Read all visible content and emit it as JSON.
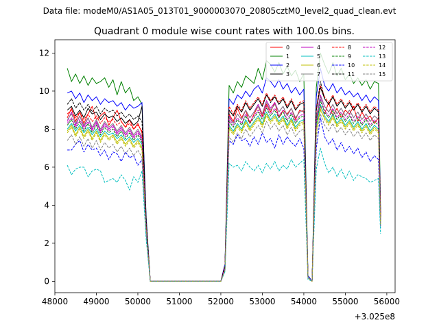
{
  "figure": {
    "suptitle": "Data file: modeM0/AS1A05_013T01_9000003070_20805cztM0_level2_quad_clean.evt"
  },
  "chart_data": {
    "type": "line",
    "title": "Quadrant 0 module wise count rates with 100.0s bins.",
    "xlabel": "",
    "ylabel": "",
    "x_offset_label": "+3.025e8",
    "xlim": [
      48000,
      56200
    ],
    "ylim": [
      -0.6,
      12.7
    ],
    "xticks": [
      48000,
      49000,
      50000,
      51000,
      52000,
      53000,
      54000,
      55000,
      56000
    ],
    "yticks": [
      0,
      2,
      4,
      6,
      8,
      10,
      12
    ],
    "xtick_labels": [
      "48000",
      "49000",
      "50000",
      "51000",
      "52000",
      "53000",
      "54000",
      "55000",
      "56000"
    ],
    "ytick_labels": [
      "0",
      "2",
      "4",
      "6",
      "8",
      "10",
      "12"
    ],
    "grid": false,
    "legend_position": "top-right",
    "x": [
      48300,
      48400,
      48500,
      48600,
      48700,
      48800,
      48900,
      49000,
      49100,
      49200,
      49300,
      49400,
      49500,
      49600,
      49700,
      49800,
      49900,
      50000,
      50100,
      50200,
      50300,
      50400,
      50500,
      51000,
      51500,
      52000,
      52100,
      52200,
      52300,
      52400,
      52500,
      52600,
      52700,
      52800,
      52900,
      53000,
      53100,
      53200,
      53300,
      53400,
      53500,
      53600,
      53700,
      53800,
      53900,
      54000,
      54100,
      54200,
      54300,
      54400,
      54500,
      54600,
      54700,
      54800,
      54900,
      55000,
      55100,
      55200,
      55300,
      55400,
      55500,
      55600,
      55700,
      55800,
      55850
    ],
    "series": [
      {
        "name": "0",
        "color": "#ff0000",
        "dash": "solid",
        "values": [
          8.6,
          9.1,
          8.4,
          8.9,
          8.3,
          8.8,
          9.2,
          8.5,
          8.7,
          8.9,
          8.2,
          8.6,
          9.0,
          8.4,
          8.1,
          8.5,
          8.0,
          8.3,
          7.8,
          3.0,
          0.0,
          0.0,
          0.0,
          0.0,
          0.0,
          0.0,
          0.8,
          8.8,
          8.4,
          9.1,
          8.6,
          9.0,
          8.3,
          8.8,
          9.2,
          8.7,
          9.3,
          8.9,
          9.4,
          8.6,
          9.0,
          8.8,
          9.1,
          8.5,
          9.0,
          8.9,
          0.2,
          0.0,
          8.5,
          9.2,
          8.8,
          9.4,
          8.7,
          9.1,
          8.6,
          9.0,
          8.8,
          9.2,
          8.4,
          8.9,
          8.5,
          8.7,
          8.3,
          8.6,
          3.5
        ]
      },
      {
        "name": "1",
        "color": "#008000",
        "dash": "solid",
        "values": [
          11.2,
          10.5,
          10.9,
          10.4,
          10.8,
          10.3,
          10.7,
          10.4,
          10.5,
          10.7,
          10.2,
          10.6,
          9.8,
          10.5,
          9.9,
          10.2,
          9.5,
          9.7,
          9.3,
          3.4,
          0.0,
          0.0,
          0.0,
          0.0,
          0.0,
          0.0,
          0.9,
          10.3,
          9.9,
          10.5,
          10.2,
          10.8,
          10.6,
          10.4,
          11.2,
          10.6,
          11.6,
          11.4,
          11.0,
          11.5,
          10.9,
          11.3,
          10.8,
          11.1,
          10.5,
          10.9,
          0.3,
          0.0,
          10.2,
          12.0,
          11.4,
          10.9,
          11.5,
          10.8,
          11.2,
          10.6,
          10.9,
          10.4,
          10.7,
          10.3,
          10.6,
          10.1,
          10.5,
          10.4,
          3.8
        ]
      },
      {
        "name": "2",
        "color": "#0000ff",
        "dash": "solid",
        "values": [
          9.9,
          10.0,
          9.6,
          9.9,
          9.4,
          9.8,
          9.5,
          9.7,
          9.3,
          9.6,
          9.4,
          9.5,
          9.2,
          9.4,
          9.0,
          9.3,
          9.1,
          9.2,
          9.4,
          3.3,
          0.0,
          0.0,
          0.0,
          0.0,
          0.0,
          0.0,
          0.9,
          9.6,
          9.3,
          9.8,
          9.6,
          10.0,
          9.7,
          10.1,
          10.3,
          9.9,
          10.7,
          10.5,
          10.2,
          10.6,
          10.1,
          10.4,
          9.9,
          10.2,
          9.8,
          10.1,
          0.3,
          0.0,
          9.7,
          11.2,
          10.3,
          10.0,
          10.4,
          9.9,
          10.2,
          9.8,
          10.0,
          9.7,
          9.9,
          9.5,
          9.8,
          9.4,
          9.7,
          9.5,
          3.6
        ]
      },
      {
        "name": "3",
        "color": "#000000",
        "dash": "solid",
        "values": [
          9.0,
          9.2,
          8.7,
          9.0,
          8.6,
          9.1,
          8.8,
          8.9,
          8.5,
          8.8,
          8.6,
          8.7,
          8.4,
          8.6,
          8.3,
          8.5,
          8.2,
          8.4,
          9.2,
          3.1,
          0.0,
          0.0,
          0.0,
          0.0,
          0.0,
          0.0,
          0.8,
          9.0,
          8.7,
          9.2,
          8.9,
          9.4,
          9.0,
          9.3,
          9.6,
          9.2,
          9.8,
          9.5,
          9.7,
          9.3,
          9.6,
          9.1,
          9.5,
          9.0,
          9.3,
          9.4,
          0.2,
          0.0,
          9.0,
          10.2,
          9.6,
          9.3,
          9.7,
          9.2,
          9.5,
          9.1,
          9.4,
          9.0,
          9.3,
          8.9,
          9.2,
          8.8,
          9.1,
          8.9,
          3.4
        ]
      },
      {
        "name": "4",
        "color": "#bf00bf",
        "dash": "solid",
        "values": [
          8.4,
          8.9,
          8.2,
          8.7,
          8.1,
          8.6,
          8.0,
          8.4,
          7.9,
          8.3,
          8.0,
          8.2,
          7.8,
          8.1,
          7.7,
          8.0,
          7.6,
          7.9,
          7.5,
          2.9,
          0.0,
          0.0,
          0.0,
          0.0,
          0.0,
          0.0,
          0.7,
          8.7,
          8.3,
          8.8,
          8.5,
          9.0,
          8.6,
          8.9,
          9.3,
          8.8,
          9.5,
          9.1,
          9.4,
          8.9,
          9.2,
          8.7,
          9.1,
          8.6,
          8.9,
          9.0,
          0.2,
          0.0,
          8.6,
          9.8,
          9.2,
          8.9,
          9.3,
          8.8,
          9.1,
          8.7,
          9.0,
          8.6,
          8.9,
          8.5,
          8.8,
          8.4,
          8.7,
          8.5,
          3.2
        ]
      },
      {
        "name": "5",
        "color": "#00bfbf",
        "dash": "solid",
        "values": [
          8.0,
          8.3,
          7.9,
          8.2,
          7.8,
          8.1,
          7.7,
          8.0,
          7.6,
          7.9,
          7.7,
          7.8,
          7.5,
          7.7,
          7.4,
          7.6,
          7.3,
          7.5,
          7.2,
          2.8,
          0.0,
          0.0,
          0.0,
          0.0,
          0.0,
          0.0,
          0.7,
          8.2,
          7.9,
          8.3,
          8.0,
          8.5,
          8.1,
          8.4,
          8.7,
          8.3,
          8.9,
          8.5,
          8.8,
          8.4,
          8.7,
          8.2,
          8.6,
          8.1,
          8.4,
          8.5,
          0.2,
          0.0,
          8.1,
          9.3,
          8.7,
          8.4,
          8.8,
          8.3,
          8.6,
          8.2,
          8.5,
          8.1,
          8.4,
          8.0,
          8.3,
          7.9,
          8.2,
          8.0,
          3.1
        ]
      },
      {
        "name": "6",
        "color": "#bfbf00",
        "dash": "solid",
        "values": [
          7.9,
          8.2,
          7.7,
          8.1,
          7.6,
          8.0,
          7.5,
          7.9,
          7.4,
          7.8,
          7.5,
          7.7,
          7.3,
          7.6,
          7.2,
          7.5,
          7.1,
          7.4,
          7.0,
          2.7,
          0.0,
          0.0,
          0.0,
          0.0,
          0.0,
          0.0,
          0.6,
          8.1,
          7.8,
          8.2,
          7.9,
          8.4,
          8.0,
          8.3,
          8.6,
          8.2,
          8.8,
          8.4,
          8.7,
          8.3,
          8.6,
          8.1,
          8.5,
          8.0,
          8.3,
          8.4,
          0.2,
          0.0,
          8.0,
          9.0,
          8.6,
          8.3,
          8.7,
          8.2,
          8.5,
          8.1,
          8.4,
          8.0,
          8.3,
          7.9,
          8.2,
          7.8,
          8.1,
          7.9,
          3.0
        ]
      },
      {
        "name": "7",
        "color": "#808080",
        "dash": "solid",
        "values": [
          8.5,
          8.8,
          8.3,
          8.7,
          8.2,
          8.6,
          8.1,
          8.5,
          8.0,
          8.4,
          8.1,
          8.3,
          7.9,
          8.2,
          7.8,
          8.1,
          7.7,
          8.0,
          7.6,
          2.9,
          0.0,
          0.0,
          0.0,
          0.0,
          0.0,
          0.0,
          0.7,
          8.6,
          8.3,
          8.8,
          8.5,
          9.0,
          8.6,
          8.9,
          9.2,
          8.8,
          9.4,
          9.0,
          9.3,
          8.9,
          9.2,
          8.7,
          9.1,
          8.6,
          8.9,
          9.0,
          0.2,
          0.0,
          8.6,
          9.7,
          9.2,
          8.9,
          9.3,
          8.8,
          9.1,
          8.7,
          9.0,
          8.6,
          8.9,
          8.5,
          8.8,
          8.4,
          8.7,
          8.5,
          3.2
        ]
      },
      {
        "name": "8",
        "color": "#ff0000",
        "dash": "dashed",
        "values": [
          8.8,
          9.0,
          8.6,
          8.9,
          8.5,
          8.8,
          8.4,
          8.7,
          8.3,
          8.6,
          8.4,
          8.5,
          8.2,
          8.4,
          8.1,
          8.3,
          8.0,
          8.2,
          7.9,
          3.0,
          0.0,
          0.0,
          0.0,
          0.0,
          0.0,
          0.0,
          0.8,
          9.2,
          8.8,
          9.3,
          9.0,
          9.5,
          9.1,
          9.4,
          9.7,
          9.3,
          9.9,
          9.5,
          9.8,
          9.4,
          9.7,
          9.2,
          9.6,
          9.1,
          9.4,
          9.5,
          0.2,
          0.0,
          9.1,
          10.3,
          9.7,
          9.4,
          9.8,
          9.3,
          9.6,
          9.2,
          9.5,
          9.1,
          9.4,
          9.0,
          9.3,
          8.9,
          9.2,
          9.0,
          3.4
        ]
      },
      {
        "name": "9",
        "color": "#008000",
        "dash": "dashed",
        "values": [
          8.2,
          8.5,
          8.0,
          8.4,
          7.9,
          8.3,
          7.8,
          8.2,
          7.7,
          8.1,
          7.8,
          8.0,
          7.6,
          7.9,
          7.5,
          7.8,
          7.4,
          7.7,
          7.3,
          2.8,
          0.0,
          0.0,
          0.0,
          0.0,
          0.0,
          0.0,
          0.7,
          8.4,
          8.1,
          8.5,
          8.2,
          8.7,
          8.3,
          8.6,
          8.9,
          8.5,
          9.1,
          8.7,
          9.0,
          8.6,
          8.9,
          8.4,
          8.8,
          8.3,
          8.6,
          8.7,
          0.2,
          0.0,
          8.3,
          9.5,
          8.9,
          8.6,
          9.0,
          8.5,
          8.8,
          8.4,
          8.7,
          8.3,
          8.6,
          8.2,
          8.5,
          8.1,
          8.4,
          8.2,
          3.2
        ]
      },
      {
        "name": "10",
        "color": "#0000ff",
        "dash": "dashed",
        "values": [
          6.9,
          6.9,
          7.2,
          7.4,
          6.8,
          7.2,
          6.9,
          7.0,
          6.6,
          6.9,
          6.4,
          6.8,
          6.7,
          6.3,
          6.8,
          6.5,
          6.6,
          6.1,
          6.4,
          2.5,
          0.0,
          0.0,
          0.0,
          0.0,
          0.0,
          0.0,
          0.6,
          7.4,
          7.2,
          7.7,
          7.4,
          7.5,
          7.1,
          7.6,
          7.2,
          7.8,
          7.3,
          7.5,
          7.0,
          7.7,
          7.2,
          7.6,
          7.3,
          7.1,
          7.5,
          7.0,
          0.2,
          0.0,
          7.0,
          8.6,
          7.6,
          7.2,
          7.5,
          6.9,
          7.3,
          6.8,
          7.1,
          6.7,
          7.0,
          6.5,
          6.8,
          6.3,
          6.6,
          6.4,
          2.8
        ]
      },
      {
        "name": "11",
        "color": "#000000",
        "dash": "dashed",
        "values": [
          9.3,
          9.6,
          9.1,
          9.4,
          9.0,
          9.3,
          8.9,
          9.2,
          8.8,
          9.1,
          8.9,
          9.0,
          8.7,
          8.9,
          8.6,
          8.8,
          8.5,
          8.7,
          8.4,
          3.2,
          0.0,
          0.0,
          0.0,
          0.0,
          0.0,
          0.0,
          0.8,
          9.0,
          8.7,
          9.2,
          8.9,
          9.4,
          9.0,
          9.3,
          9.6,
          9.2,
          9.8,
          9.4,
          9.7,
          9.3,
          9.6,
          9.1,
          9.5,
          9.0,
          9.3,
          9.4,
          0.2,
          0.0,
          9.0,
          10.5,
          9.6,
          9.3,
          9.7,
          9.2,
          9.5,
          9.1,
          9.4,
          9.0,
          9.3,
          8.9,
          9.2,
          8.8,
          9.1,
          8.9,
          3.4
        ]
      },
      {
        "name": "12",
        "color": "#bf00bf",
        "dash": "dashed",
        "values": [
          8.3,
          8.6,
          8.1,
          8.5,
          8.0,
          8.4,
          7.9,
          8.3,
          7.8,
          8.2,
          7.9,
          8.1,
          7.7,
          8.0,
          7.6,
          7.9,
          7.5,
          7.8,
          7.4,
          2.8,
          0.0,
          0.0,
          0.0,
          0.0,
          0.0,
          0.0,
          0.7,
          8.5,
          8.2,
          8.6,
          8.3,
          8.8,
          8.4,
          8.7,
          9.0,
          8.6,
          9.2,
          8.8,
          9.1,
          8.7,
          9.0,
          8.5,
          8.9,
          8.4,
          8.7,
          8.8,
          0.2,
          0.0,
          8.4,
          9.6,
          9.0,
          8.7,
          9.1,
          8.6,
          8.9,
          8.5,
          8.8,
          8.4,
          8.7,
          8.3,
          8.6,
          8.2,
          8.5,
          8.3,
          3.2
        ]
      },
      {
        "name": "13",
        "color": "#00bfbf",
        "dash": "dashed",
        "values": [
          6.1,
          5.6,
          5.9,
          6.0,
          6.0,
          5.5,
          5.8,
          5.9,
          5.8,
          5.2,
          5.3,
          5.4,
          5.2,
          5.6,
          5.3,
          4.8,
          5.5,
          5.2,
          5.8,
          2.2,
          0.0,
          0.0,
          0.0,
          0.0,
          0.0,
          0.0,
          0.5,
          6.2,
          6.0,
          6.1,
          5.8,
          6.3,
          6.0,
          5.8,
          6.1,
          5.7,
          6.2,
          5.9,
          6.3,
          5.8,
          6.1,
          5.9,
          6.4,
          6.0,
          6.2,
          6.4,
          0.1,
          0.0,
          5.9,
          7.0,
          6.2,
          5.7,
          6.0,
          5.5,
          5.9,
          5.4,
          5.8,
          5.3,
          5.6,
          5.5,
          5.4,
          5.2,
          5.3,
          5.4,
          2.5
        ]
      },
      {
        "name": "14",
        "color": "#bfbf00",
        "dash": "dashed",
        "values": [
          7.8,
          8.1,
          7.6,
          8.0,
          7.5,
          7.9,
          7.4,
          7.8,
          7.3,
          7.7,
          7.4,
          7.6,
          7.2,
          7.5,
          7.1,
          7.4,
          7.0,
          7.3,
          6.9,
          2.7,
          0.0,
          0.0,
          0.0,
          0.0,
          0.0,
          0.0,
          0.6,
          8.0,
          7.7,
          8.1,
          7.8,
          8.3,
          7.9,
          8.2,
          8.5,
          8.1,
          8.7,
          8.3,
          8.6,
          8.2,
          8.5,
          8.0,
          8.4,
          7.9,
          8.2,
          8.3,
          0.2,
          0.0,
          7.9,
          9.1,
          8.5,
          8.2,
          8.6,
          8.1,
          8.4,
          8.0,
          8.3,
          7.9,
          8.2,
          7.8,
          8.1,
          7.7,
          8.0,
          7.8,
          3.0
        ]
      },
      {
        "name": "15",
        "color": "#808080",
        "dash": "dashed",
        "values": [
          7.4,
          7.7,
          7.2,
          7.6,
          7.1,
          7.5,
          7.0,
          7.4,
          6.9,
          7.3,
          7.0,
          7.2,
          6.8,
          7.1,
          6.7,
          7.0,
          6.6,
          6.9,
          6.5,
          2.6,
          0.0,
          0.0,
          0.0,
          0.0,
          0.0,
          0.0,
          0.6,
          7.6,
          7.3,
          7.8,
          7.5,
          8.0,
          7.6,
          7.9,
          8.2,
          7.8,
          8.4,
          8.0,
          8.3,
          7.9,
          8.2,
          7.7,
          8.1,
          7.6,
          7.9,
          8.0,
          0.2,
          0.0,
          7.6,
          8.8,
          8.2,
          7.9,
          8.3,
          7.8,
          8.1,
          7.7,
          8.0,
          7.6,
          7.9,
          7.5,
          7.8,
          7.4,
          7.7,
          7.5,
          2.9
        ]
      }
    ]
  }
}
